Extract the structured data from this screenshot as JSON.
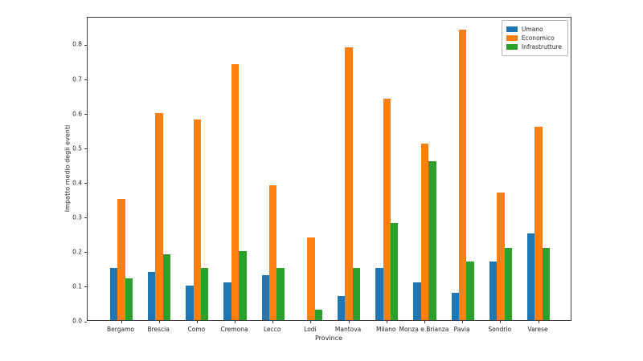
{
  "chart_data": {
    "type": "bar",
    "title": "",
    "xlabel": "Province",
    "ylabel": "Impatto medio degli eventi",
    "categories": [
      "Bergamo",
      "Brescia",
      "Como",
      "Cremona",
      "Lecco",
      "Lodi",
      "Mantova",
      "Milano",
      "Monza e Brianza",
      "Pavia",
      "Sondrio",
      "Varese"
    ],
    "series": [
      {
        "name": "Umano",
        "color": "#1f77b4",
        "values": [
          0.15,
          0.14,
          0.1,
          0.11,
          0.13,
          0.0,
          0.07,
          0.15,
          0.11,
          0.08,
          0.17,
          0.25
        ]
      },
      {
        "name": "Economico",
        "color": "#ff7f0e",
        "values": [
          0.35,
          0.6,
          0.58,
          0.74,
          0.39,
          0.24,
          0.79,
          0.64,
          0.51,
          0.84,
          0.37,
          0.56
        ]
      },
      {
        "name": "Infrastrutture",
        "color": "#2ca02c",
        "values": [
          0.12,
          0.19,
          0.15,
          0.2,
          0.15,
          0.03,
          0.15,
          0.28,
          0.46,
          0.17,
          0.21,
          0.21
        ]
      }
    ],
    "ylim": [
      0,
      0.88
    ],
    "yticks": [
      0.0,
      0.1,
      0.2,
      0.3,
      0.4,
      0.5,
      0.6,
      0.7,
      0.8
    ],
    "grid": false,
    "legend_position": "upper right"
  }
}
